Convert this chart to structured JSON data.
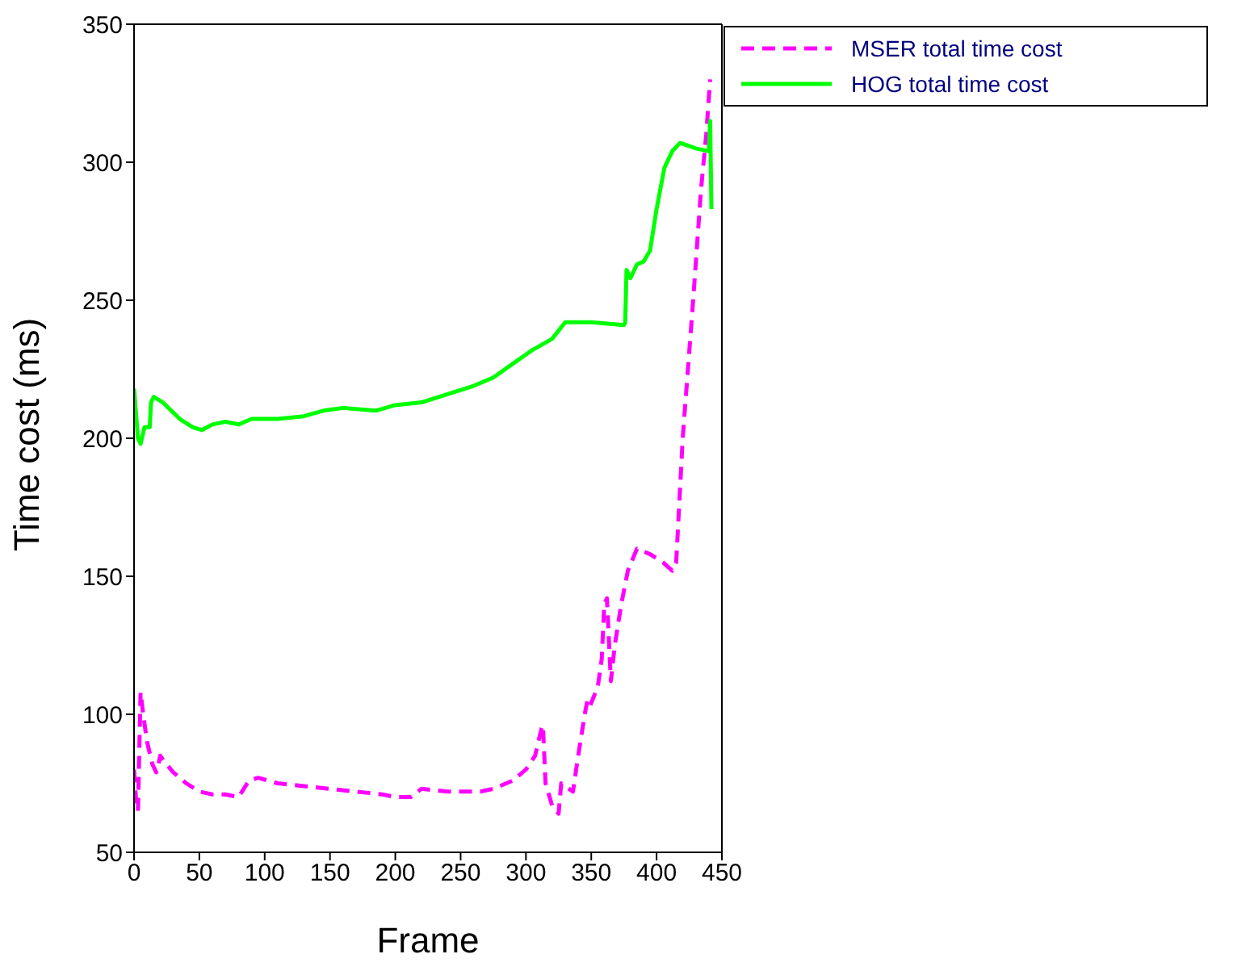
{
  "chart_data": {
    "type": "line",
    "xlabel": "Frame",
    "ylabel": "Time cost (ms)",
    "xlim": [
      0,
      450
    ],
    "ylim": [
      50,
      350
    ],
    "xticks": [
      0,
      50,
      100,
      150,
      200,
      250,
      300,
      350,
      400,
      450
    ],
    "yticks": [
      50,
      100,
      150,
      200,
      250,
      300,
      350
    ],
    "grid": false,
    "legend": "top right",
    "marker": "none",
    "series": [
      {
        "name": "MSER total time cost",
        "color": "#ff00ff",
        "line_style": "dashed",
        "x": [
          0,
          2,
          3,
          5,
          7,
          10,
          14,
          17,
          18,
          20,
          23,
          30,
          40,
          50,
          60,
          70,
          80,
          88,
          95,
          110,
          130,
          150,
          170,
          190,
          200,
          212,
          220,
          240,
          265,
          275,
          290,
          300,
          307,
          312,
          313,
          315,
          320,
          325,
          327,
          333,
          336,
          340,
          345,
          347,
          349,
          355,
          358,
          360,
          362,
          365,
          368,
          373,
          378,
          385,
          395,
          405,
          412,
          415,
          420,
          428,
          434,
          438,
          441
        ],
        "values": [
          80,
          66,
          65,
          108,
          100,
          90,
          82,
          79,
          80,
          85,
          83,
          79,
          75,
          72,
          71,
          71,
          70,
          76,
          77,
          75,
          74,
          73,
          72,
          71,
          70,
          70,
          73,
          72,
          72,
          73,
          76,
          80,
          85,
          95,
          96,
          75,
          67,
          64,
          75,
          73,
          72,
          85,
          100,
          105,
          103,
          110,
          120,
          140,
          142,
          112,
          125,
          140,
          152,
          160,
          158,
          155,
          152,
          155,
          200,
          250,
          290,
          310,
          330
        ]
      },
      {
        "name": "HOG total time cost",
        "color": "#00ff00",
        "line_style": "solid",
        "x": [
          0,
          3,
          5,
          8,
          12,
          13,
          15,
          22,
          35,
          45,
          52,
          60,
          70,
          80,
          90,
          110,
          130,
          145,
          160,
          185,
          200,
          220,
          240,
          260,
          275,
          290,
          305,
          320,
          330,
          350,
          375,
          376,
          377,
          380,
          385,
          390,
          395,
          400,
          406,
          412,
          418,
          424,
          430,
          440,
          441,
          442
        ],
        "values": [
          218,
          200,
          198,
          204,
          204,
          213,
          215,
          213,
          207,
          204,
          203,
          205,
          206,
          205,
          207,
          207,
          208,
          210,
          211,
          210,
          212,
          213,
          216,
          219,
          222,
          227,
          232,
          236,
          242,
          242,
          241,
          242,
          261,
          258,
          263,
          264,
          268,
          283,
          298,
          304,
          307,
          306,
          305,
          304,
          315,
          283
        ]
      }
    ]
  }
}
